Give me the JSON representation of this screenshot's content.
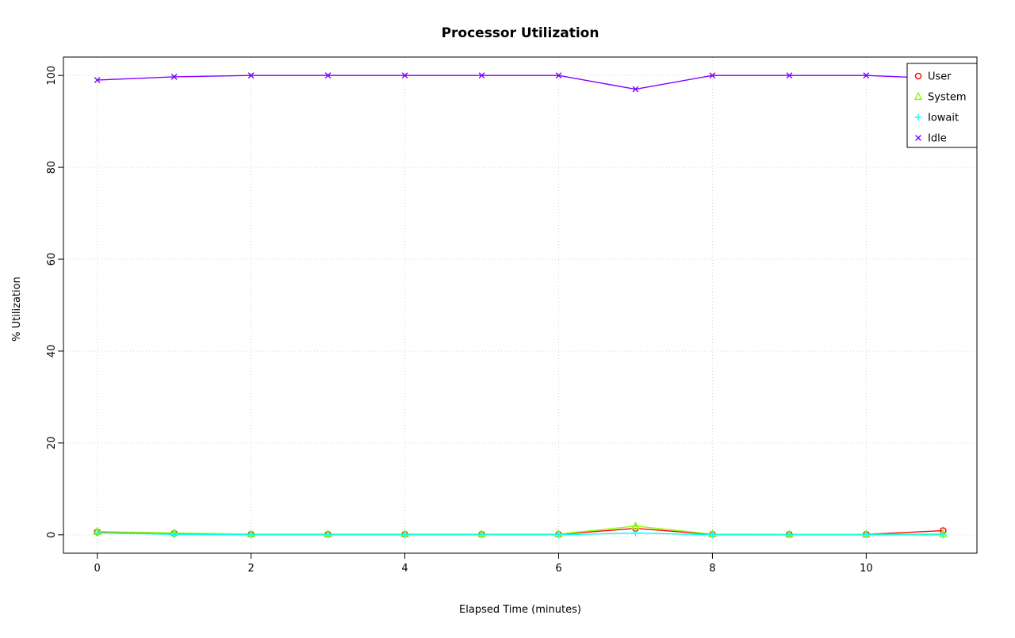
{
  "chart_data": {
    "type": "line",
    "title": "Processor Utilization",
    "xlabel": "Elapsed Time (minutes)",
    "ylabel": "% Utilization",
    "x": [
      0,
      1,
      2,
      3,
      4,
      5,
      6,
      7,
      8,
      9,
      10,
      11
    ],
    "series": [
      {
        "name": "User",
        "marker": "circle",
        "color": "#ff0000",
        "values": [
          0.6,
          0.3,
          0.1,
          0.1,
          0.1,
          0.1,
          0.1,
          1.4,
          0.1,
          0.1,
          0.1,
          0.9
        ]
      },
      {
        "name": "System",
        "marker": "triangle",
        "color": "#80ff00",
        "values": [
          0.7,
          0.4,
          0.15,
          0.15,
          0.15,
          0.15,
          0.15,
          1.9,
          0.15,
          0.1,
          0.1,
          0.2
        ]
      },
      {
        "name": "Iowait",
        "marker": "plus",
        "color": "#00ffff",
        "values": [
          0.4,
          0.1,
          0.0,
          0.0,
          0.0,
          0.0,
          0.0,
          0.4,
          0.0,
          0.0,
          0.0,
          0.0
        ]
      },
      {
        "name": "Idle",
        "marker": "x",
        "color": "#8000ff",
        "values": [
          99.0,
          99.7,
          100.0,
          100.0,
          100.0,
          100.0,
          100.0,
          97.0,
          100.0,
          100.0,
          100.0,
          99.3
        ]
      }
    ],
    "xticks": [
      0,
      2,
      4,
      6,
      8,
      10
    ],
    "yticks": [
      0,
      20,
      40,
      60,
      80,
      100
    ],
    "xlim": [
      -0.44,
      11.44
    ],
    "ylim": [
      -4,
      104
    ],
    "grid": true,
    "grid_color": "#d3d3d3",
    "legend_position": "top-right"
  }
}
